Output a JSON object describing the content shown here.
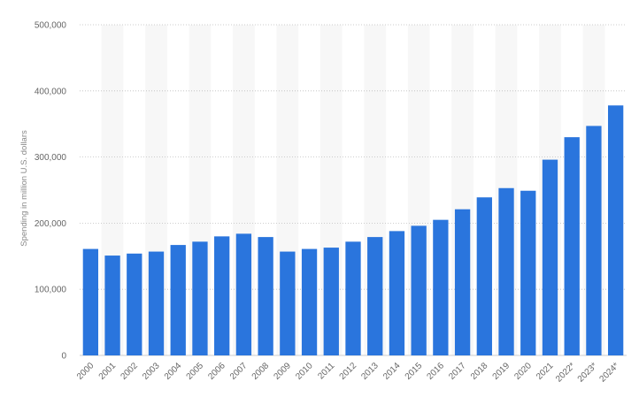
{
  "chart_data": {
    "type": "bar",
    "categories": [
      "2000",
      "2001",
      "2002",
      "2003",
      "2004",
      "2005",
      "2006",
      "2007",
      "2008",
      "2009",
      "2010",
      "2011",
      "2012",
      "2013",
      "2014",
      "2015",
      "2016",
      "2017",
      "2018",
      "2019",
      "2020",
      "2021",
      "2022*",
      "2023*",
      "2024*"
    ],
    "values": [
      161000,
      151000,
      154000,
      157000,
      167000,
      172000,
      180000,
      184000,
      179000,
      157000,
      161000,
      163000,
      172000,
      179000,
      188000,
      196000,
      205000,
      221000,
      239000,
      253000,
      249000,
      296000,
      330000,
      347000,
      378000
    ],
    "title": "",
    "xlabel": "",
    "ylabel": "Spending in million U.S. dollars",
    "ylim": [
      0,
      500000
    ],
    "yticks": [
      0,
      100000,
      200000,
      300000,
      400000,
      500000
    ],
    "ytick_labels": [
      "0",
      "100,000",
      "200,000",
      "300,000",
      "400,000",
      "500,000"
    ],
    "grid": true,
    "bar_color": "#2a75dd"
  }
}
